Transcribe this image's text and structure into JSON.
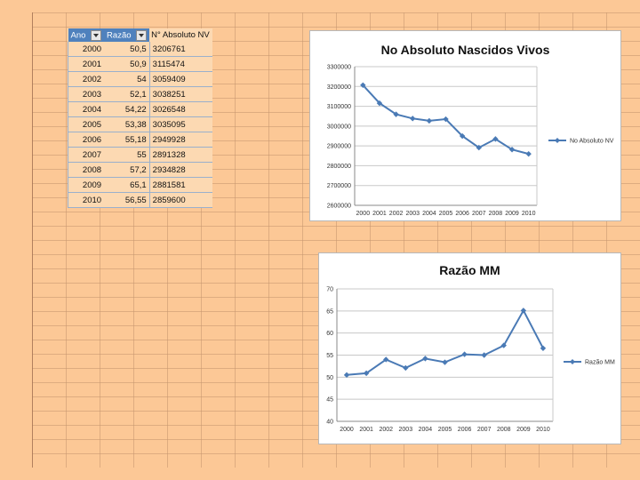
{
  "table": {
    "headers": {
      "ano": "Ano",
      "razao": "Razão",
      "nv": "N° Absoluto NV"
    },
    "rows": [
      {
        "ano": "2000",
        "razao": "50,5",
        "nv": "3206761"
      },
      {
        "ano": "2001",
        "razao": "50,9",
        "nv": "3115474"
      },
      {
        "ano": "2002",
        "razao": "54",
        "nv": "3059409"
      },
      {
        "ano": "2003",
        "razao": "52,1",
        "nv": "3038251"
      },
      {
        "ano": "2004",
        "razao": "54,22",
        "nv": "3026548"
      },
      {
        "ano": "2005",
        "razao": "53,38",
        "nv": "3035095"
      },
      {
        "ano": "2006",
        "razao": "55,18",
        "nv": "2949928"
      },
      {
        "ano": "2007",
        "razao": "55",
        "nv": "2891328"
      },
      {
        "ano": "2008",
        "razao": "57,2",
        "nv": "2934828"
      },
      {
        "ano": "2009",
        "razao": "65,1",
        "nv": "2881581"
      },
      {
        "ano": "2010",
        "razao": "56,55",
        "nv": "2859600"
      }
    ]
  },
  "chart_data": [
    {
      "type": "line",
      "title": "No Absoluto Nascidos Vivos",
      "x": [
        "2000",
        "2001",
        "2002",
        "2003",
        "2004",
        "2005",
        "2006",
        "2007",
        "2008",
        "2009",
        "2010"
      ],
      "yticks": [
        "2600000",
        "2700000",
        "2800000",
        "2900000",
        "3000000",
        "3100000",
        "3200000",
        "3300000"
      ],
      "ylim": [
        2600000,
        3300000
      ],
      "series": [
        {
          "name": "No Absoluto NV",
          "values": [
            3206761,
            3115474,
            3059409,
            3038251,
            3026548,
            3035095,
            2949928,
            2891328,
            2934828,
            2881581,
            2859600
          ]
        }
      ],
      "legend": "right",
      "color": "#4a7ab5"
    },
    {
      "type": "line",
      "title": "Razão MM",
      "x": [
        "2000",
        "2001",
        "2002",
        "2003",
        "2004",
        "2005",
        "2006",
        "2007",
        "2008",
        "2009",
        "2010"
      ],
      "yticks": [
        "40",
        "45",
        "50",
        "55",
        "60",
        "65",
        "70"
      ],
      "ylim": [
        40,
        70
      ],
      "series": [
        {
          "name": "Razão MM",
          "values": [
            50.5,
            50.9,
            54,
            52.1,
            54.22,
            53.38,
            55.18,
            55,
            57.2,
            65.1,
            56.55
          ]
        }
      ],
      "legend": "right",
      "color": "#4a7ab5"
    }
  ]
}
